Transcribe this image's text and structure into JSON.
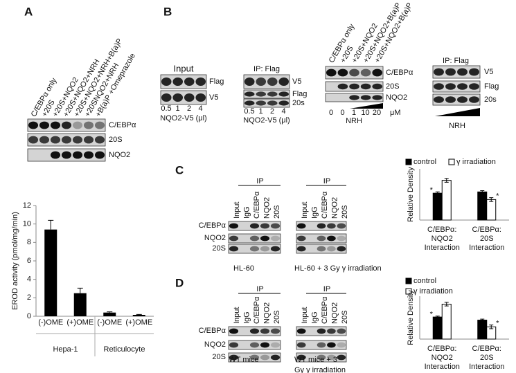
{
  "panel_labels": [
    "A",
    "B",
    "C",
    "D"
  ],
  "panel_a": {
    "lanes": [
      "C/EBPα only",
      "+20S",
      "+20S+NQO2",
      "+20S+NQO2+NRH",
      "+20S+NQO2+NRH+B(a)P",
      "+20SNQO2+NRH",
      "+B(a)P +Omeprazole"
    ],
    "rows": [
      "C/EBPα",
      "20S",
      "NQO2"
    ]
  },
  "panel_b": {
    "input": {
      "title": "Input",
      "rows": [
        "Flag",
        "V5"
      ],
      "amounts": [
        "0.5",
        "1",
        "2",
        "4"
      ],
      "unit_label": "NQO2-V5 (μl)"
    },
    "ip": {
      "title": "IP: Flag",
      "rows": [
        "V5",
        "Flag",
        "20s"
      ],
      "amounts": [
        "0.5",
        "1",
        "2",
        "4"
      ],
      "unit_label": "NQO2-V5 (μl)"
    },
    "nrh_blot": {
      "lanes": [
        "C/EBPα only",
        "+20S",
        "+20S+NQO2",
        "+20S+NQO2+B(a)P",
        "+20S+NQO2+B(a)P"
      ],
      "rows": [
        "C/EBPα",
        "20S",
        "NQO2"
      ],
      "doses": [
        "0",
        "0",
        "1",
        "10",
        "20"
      ],
      "dose_unit": "μM",
      "label": "NRH"
    },
    "nrh_ip": {
      "title": "IP: Flag",
      "rows": [
        "V5",
        "Flag",
        "20s"
      ],
      "label": "NRH"
    }
  },
  "panel_c": {
    "rows": [
      "C/EBPα",
      "NQO2",
      "20S"
    ],
    "blots": [
      {
        "header": "IP",
        "lanes": [
          "Input",
          "IgG",
          "C/EBPα",
          "NQO2",
          "20S"
        ],
        "caption": [
          "HL-60"
        ]
      },
      {
        "header": "IP",
        "lanes": [
          "Input",
          "IgG",
          "C/EBPα",
          "NQO2",
          "20S"
        ],
        "caption": [
          "HL-60 + 3 Gy γ irradiation"
        ]
      }
    ]
  },
  "panel_d": {
    "rows": [
      "C/EBPα",
      "NQO2",
      "20S"
    ],
    "blots": [
      {
        "header": "IP",
        "lanes": [
          "Input",
          "IgG",
          "C/EBPα",
          "NQO2",
          "20S"
        ],
        "caption": [
          "WT mice"
        ]
      },
      {
        "header": "IP",
        "lanes": [
          "Input",
          "IgG",
          "C/EBPα",
          "NQO2",
          "20S"
        ],
        "caption": [
          "WT mice + 3",
          "Gy γ irradiation"
        ]
      }
    ]
  },
  "chart_data": [
    {
      "type": "bar",
      "y_label": "EROD activity (pmol/mg/min)",
      "categories": [
        "(-)OME",
        "(+)OME",
        "(-)OME",
        "(+)OME"
      ],
      "groups": [
        "Hepa-1",
        "Reticulocyte"
      ],
      "values": [
        9.4,
        2.5,
        0.4,
        0.15
      ],
      "errors": [
        1.0,
        0.55,
        0.08,
        0.05
      ],
      "color": "#000000",
      "ylim": [
        0,
        12
      ],
      "yticks": [
        0,
        2,
        4,
        6,
        8,
        10,
        12
      ]
    },
    {
      "type": "grouped_bar",
      "y_label": "Relative Density",
      "categories": [
        "C/EBPα: NQO2 Interaction",
        "C/EBPα: 20S Interaction"
      ],
      "series": [
        {
          "name": "control",
          "color": "#000000",
          "values": [
            2.1,
            2.2
          ],
          "errors": [
            0.1,
            0.1
          ],
          "significance": [
            "*",
            null
          ]
        },
        {
          "name": "γ irradiation",
          "color": "#ffffff",
          "values": [
            3.1,
            1.6
          ],
          "errors": [
            0.15,
            0.15
          ],
          "significance": [
            null,
            "*"
          ]
        }
      ],
      "ylim": [
        0,
        4
      ]
    },
    {
      "type": "grouped_bar",
      "y_label": "Relative Density",
      "categories": [
        "C/EBPα: NQO2 Interaction",
        "C/EBPα: 20S Interaction"
      ],
      "series": [
        {
          "name": "control",
          "color": "#000000",
          "values": [
            1.8,
            1.55
          ],
          "errors": [
            0.08,
            0.08
          ],
          "significance": [
            "*",
            null
          ]
        },
        {
          "name": "γ irradiation",
          "color": "#ffffff",
          "values": [
            2.85,
            1.0
          ],
          "errors": [
            0.15,
            0.15
          ],
          "significance": [
            null,
            "*"
          ]
        }
      ],
      "ylim": [
        0,
        3.5
      ]
    }
  ]
}
